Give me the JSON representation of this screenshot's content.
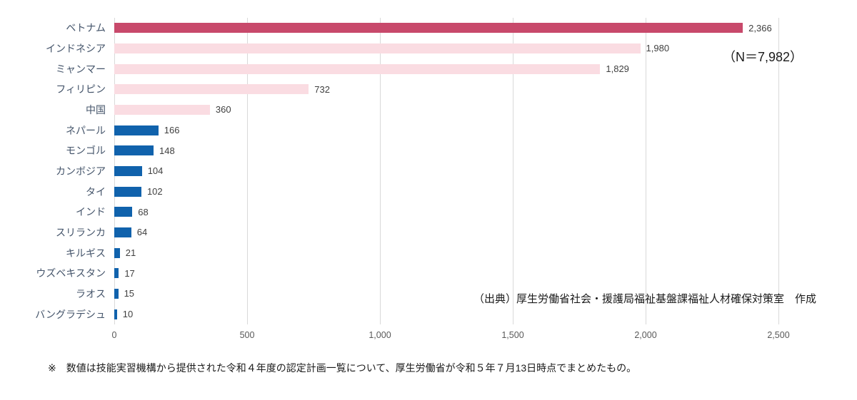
{
  "chart_data": {
    "type": "bar",
    "orientation": "horizontal",
    "title": "",
    "xlabel": "",
    "ylabel": "",
    "categories": [
      "ベトナム",
      "インドネシア",
      "ミャンマー",
      "フィリピン",
      "中国",
      "ネパール",
      "モンゴル",
      "カンボジア",
      "タイ",
      "インド",
      "スリランカ",
      "キルギス",
      "ウズベキスタン",
      "ラオス",
      "バングラデシュ"
    ],
    "values": [
      2366,
      1980,
      1829,
      732,
      360,
      166,
      148,
      104,
      102,
      68,
      64,
      21,
      17,
      15,
      10
    ],
    "value_labels": [
      "2,366",
      "1,980",
      "1,829",
      "732",
      "360",
      "166",
      "148",
      "104",
      "102",
      "68",
      "64",
      "21",
      "17",
      "15",
      "10"
    ],
    "bar_colors": [
      "#C8496B",
      "#FADCE2",
      "#FADCE2",
      "#FADCE2",
      "#FADCE2",
      "#1062AC",
      "#1062AC",
      "#1062AC",
      "#1062AC",
      "#1062AC",
      "#1062AC",
      "#1062AC",
      "#1062AC",
      "#1062AC",
      "#1062AC"
    ],
    "xlim": [
      0,
      2500
    ],
    "x_tick_values": [
      0,
      500,
      1000,
      1500,
      2000,
      2500
    ],
    "x_tick_labels": [
      "0",
      "500",
      "1,000",
      "1,500",
      "2,000",
      "2,500"
    ],
    "grid": true,
    "legend": null,
    "annotation": "（N＝7,982）",
    "source": "（出典）厚生労働省社会・援護局福祉基盤課福祉人材確保対策室　作成",
    "footnote": "※　数値は技能実習機構から提供された令和４年度の認定計画一覧について、厚生労働省が令和５年７月13日時点でまとめたもの。"
  },
  "colors": {
    "highlight_bar": "#C8496B",
    "pink_bar": "#FADCE2",
    "blue_bar": "#1062AC",
    "gridline": "#D9D9D9",
    "category_label": "#44546A",
    "value_label": "#404040",
    "tick_label": "#595959",
    "text": "#1A1A1A",
    "background": "#FFFFFF"
  }
}
